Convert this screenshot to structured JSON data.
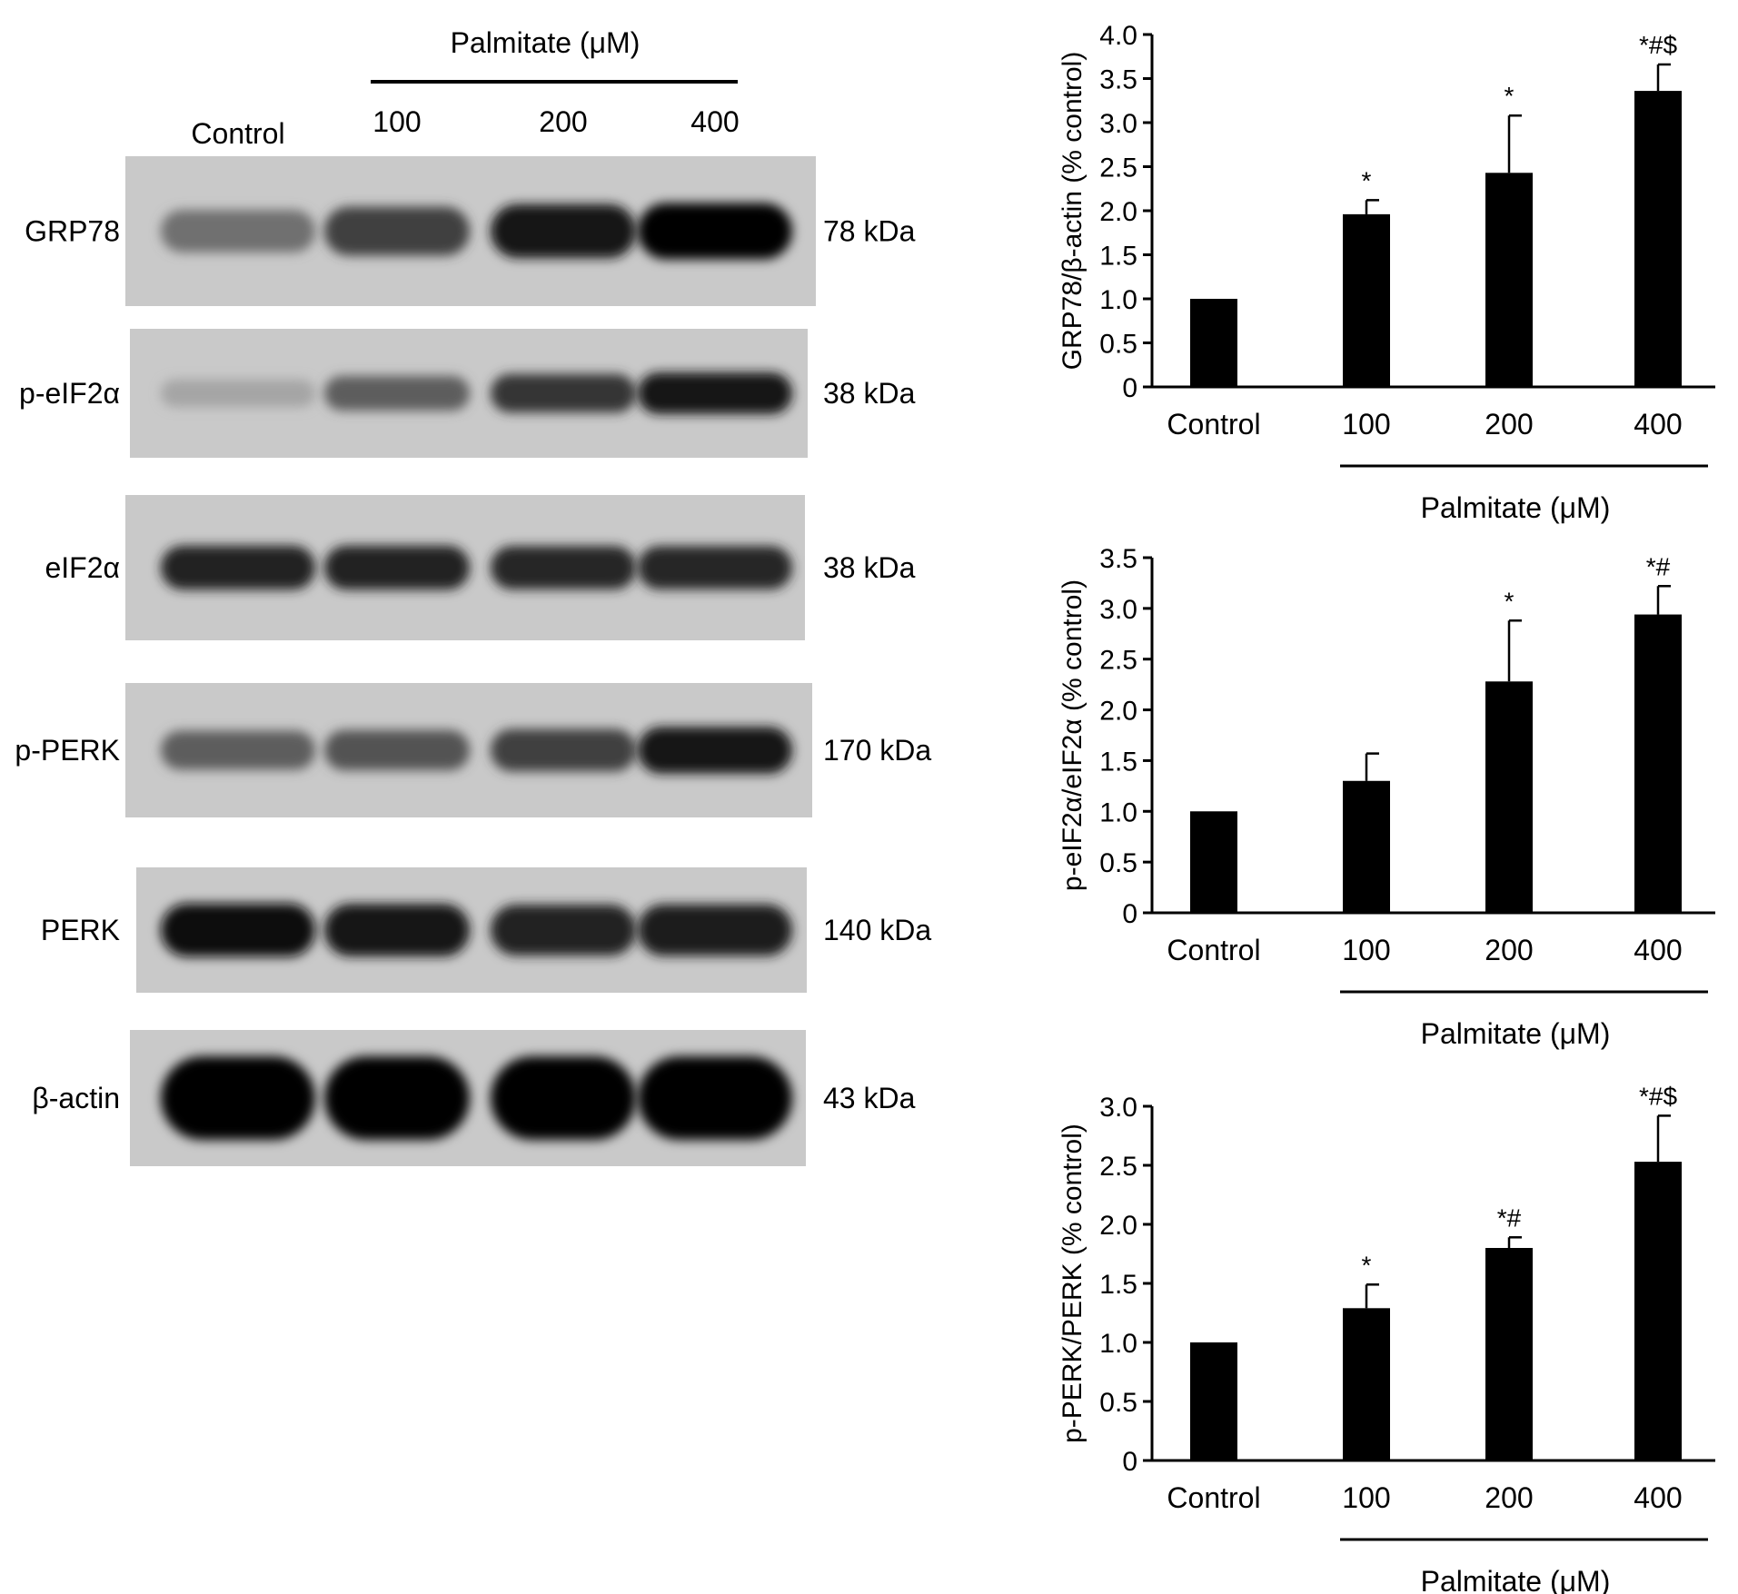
{
  "blot": {
    "group_label": "Palmitate (μM)",
    "lane_labels": [
      "Control",
      "100",
      "200",
      "400"
    ],
    "rows": [
      {
        "protein": "GRP78",
        "size": "78 kDa",
        "intensities": [
          0.45,
          0.7,
          0.9,
          1.0
        ]
      },
      {
        "protein": "p-eIF2α",
        "size": "38 kDa",
        "intensities": [
          0.18,
          0.55,
          0.75,
          0.9
        ]
      },
      {
        "protein": "eIF2α",
        "size": "38 kDa",
        "intensities": [
          0.85,
          0.85,
          0.82,
          0.82
        ]
      },
      {
        "protein": "p-PERK",
        "size": "170 kDa",
        "intensities": [
          0.55,
          0.6,
          0.7,
          0.9
        ]
      },
      {
        "protein": "PERK",
        "size": "140 kDa",
        "intensities": [
          0.95,
          0.92,
          0.85,
          0.88
        ]
      },
      {
        "protein": "β-actin",
        "size": "43 kDa",
        "intensities": [
          1.0,
          1.0,
          1.0,
          1.0
        ]
      }
    ]
  },
  "chart_data": [
    {
      "type": "bar",
      "title": "",
      "ylabel": "GRP78/β-actin (% control)",
      "xlabel": "Palmitate (μM)",
      "categories": [
        "Control",
        "100",
        "200",
        "400"
      ],
      "values": [
        1.0,
        1.96,
        2.43,
        3.36
      ],
      "errors": [
        0.0,
        0.16,
        0.65,
        0.3
      ],
      "annotations": [
        "",
        "*",
        "*",
        "*#$"
      ],
      "ylim": [
        0,
        4.0
      ],
      "yticks": [
        "0",
        "0.5",
        "1.0",
        "1.5",
        "2.0",
        "2.5",
        "3.0",
        "3.5",
        "4.0"
      ],
      "grid": false,
      "bar_color": "#000000"
    },
    {
      "type": "bar",
      "title": "",
      "ylabel": "p-eIF2α/eIF2α (% control)",
      "xlabel": "Palmitate (μM)",
      "categories": [
        "Control",
        "100",
        "200",
        "400"
      ],
      "values": [
        1.0,
        1.3,
        2.28,
        2.94
      ],
      "errors": [
        0.0,
        0.27,
        0.6,
        0.28
      ],
      "annotations": [
        "",
        "",
        "*",
        "*#"
      ],
      "ylim": [
        0,
        3.5
      ],
      "yticks": [
        "0",
        "0.5",
        "1.0",
        "1.5",
        "2.0",
        "2.5",
        "3.0",
        "3.5"
      ],
      "grid": false,
      "bar_color": "#000000"
    },
    {
      "type": "bar",
      "title": "",
      "ylabel": "p-PERK/PERK (% control)",
      "xlabel": "Palmitate (μM)",
      "categories": [
        "Control",
        "100",
        "200",
        "400"
      ],
      "values": [
        1.0,
        1.29,
        1.8,
        2.53
      ],
      "errors": [
        0.0,
        0.2,
        0.09,
        0.39
      ],
      "annotations": [
        "",
        "*",
        "*#",
        "*#$"
      ],
      "ylim": [
        0,
        3.0
      ],
      "yticks": [
        "0",
        "0.5",
        "1.0",
        "1.5",
        "2.0",
        "2.5",
        "3.0"
      ],
      "grid": false,
      "bar_color": "#000000"
    }
  ]
}
